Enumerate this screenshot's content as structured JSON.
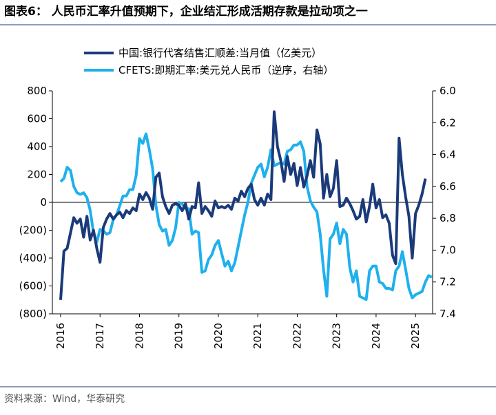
{
  "chart_data": {
    "type": "line",
    "title": "图表6：  人民币汇率升值预期下，企业结汇形成活期存款是拉动项之一",
    "source": "资料来源：Wind，华泰研究",
    "categories": [
      "2016",
      null,
      null,
      null,
      null,
      null,
      null,
      null,
      null,
      null,
      null,
      null,
      "2017",
      null,
      null,
      null,
      null,
      null,
      null,
      null,
      null,
      null,
      null,
      null,
      "2018",
      null,
      null,
      null,
      null,
      null,
      null,
      null,
      null,
      null,
      null,
      null,
      "2019",
      null,
      null,
      null,
      null,
      null,
      null,
      null,
      null,
      null,
      null,
      null,
      "2020",
      null,
      null,
      null,
      null,
      null,
      null,
      null,
      null,
      null,
      null,
      null,
      "2021",
      null,
      null,
      null,
      null,
      null,
      null,
      null,
      null,
      null,
      null,
      null,
      "2022",
      null,
      null,
      null,
      null,
      null,
      null,
      null,
      null,
      null,
      null,
      null,
      "2023",
      null,
      null,
      null,
      null,
      null,
      null,
      null,
      null,
      null,
      null,
      null,
      "2024",
      null,
      null,
      null,
      null,
      null,
      null,
      null,
      null,
      null,
      null,
      null,
      "2025",
      null,
      null,
      null,
      null,
      null
    ],
    "series": [
      {
        "name": "中国:银行代客结售汇顺差:当月值（亿美元）",
        "color": "#1b3a7a",
        "axis": "y",
        "values": [
          -700,
          -350,
          -330,
          -220,
          -110,
          -150,
          -120,
          -250,
          -100,
          -270,
          -200,
          -330,
          -430,
          -180,
          -120,
          -80,
          -120,
          -90,
          -70,
          -110,
          -60,
          -80,
          -40,
          -60,
          60,
          20,
          70,
          30,
          -50,
          180,
          210,
          40,
          -30,
          -80,
          -20,
          -10,
          -20,
          -60,
          -10,
          -120,
          -30,
          -40,
          140,
          -80,
          -30,
          -60,
          -100,
          10,
          -40,
          -30,
          -40,
          -20,
          -50,
          30,
          10,
          80,
          40,
          100,
          130,
          20,
          -20,
          30,
          -20,
          60,
          20,
          650,
          400,
          300,
          150,
          330,
          200,
          280,
          120,
          250,
          110,
          190,
          300,
          180,
          520,
          420,
          30,
          200,
          40,
          100,
          300,
          -30,
          -20,
          30,
          -10,
          -60,
          -120,
          -100,
          20,
          -140,
          -30,
          130,
          -40,
          20,
          -110,
          -90,
          -150,
          -380,
          -440,
          460,
          200,
          40,
          -100,
          -400,
          -80,
          -20,
          60,
          170,
          null,
          null
        ]
      },
      {
        "name": "CFETS:即期汇率:美元兑人民币（逆序，右轴）",
        "color": "#1fb0ee",
        "axis": "y2",
        "values": [
          6.57,
          6.55,
          6.48,
          6.5,
          6.6,
          6.64,
          6.65,
          6.64,
          6.67,
          6.75,
          6.89,
          6.95,
          6.87,
          6.88,
          6.9,
          6.89,
          6.81,
          6.78,
          6.72,
          6.66,
          6.66,
          6.62,
          6.62,
          6.53,
          6.3,
          6.33,
          6.27,
          6.37,
          6.49,
          6.72,
          6.84,
          6.88,
          6.87,
          6.97,
          6.94,
          6.86,
          6.7,
          6.71,
          6.74,
          6.74,
          6.9,
          6.88,
          6.89,
          7.14,
          7.13,
          7.06,
          7.03,
          6.97,
          6.94,
          7.02,
          7.1,
          7.07,
          7.13,
          7.08,
          6.98,
          6.88,
          6.78,
          6.7,
          6.58,
          6.53,
          6.48,
          6.46,
          6.54,
          6.48,
          6.37,
          6.47,
          6.46,
          6.45,
          6.46,
          6.38,
          6.37,
          6.34,
          6.34,
          6.32,
          6.38,
          6.6,
          6.69,
          6.73,
          6.76,
          6.9,
          7.12,
          7.29,
          6.93,
          6.9,
          6.83,
          6.96,
          6.87,
          6.9,
          7.11,
          7.2,
          7.13,
          7.29,
          7.3,
          7.31,
          7.13,
          7.1,
          7.1,
          7.2,
          7.21,
          7.24,
          7.24,
          7.25,
          7.13,
          7.1,
          7.01,
          7.12,
          7.24,
          7.3,
          7.28,
          7.27,
          7.26,
          7.2,
          7.16,
          7.17
        ]
      }
    ],
    "ylim": [
      -800,
      800
    ],
    "yticks": [
      800,
      600,
      400,
      200,
      0,
      {
        "value": -200,
        "label": "(200)"
      },
      {
        "value": -400,
        "label": "(400)"
      },
      {
        "value": -600,
        "label": "(600)"
      },
      {
        "value": -800,
        "label": "(800)"
      }
    ],
    "y2lim": [
      7.4,
      6.0
    ],
    "y2ticks": [
      {
        "value": 6,
        "label": "6.0"
      },
      6.2,
      6.4,
      6.6,
      6.8,
      {
        "value": 7,
        "label": "7.0"
      },
      7.2,
      7.4
    ],
    "legend": "top-left"
  }
}
